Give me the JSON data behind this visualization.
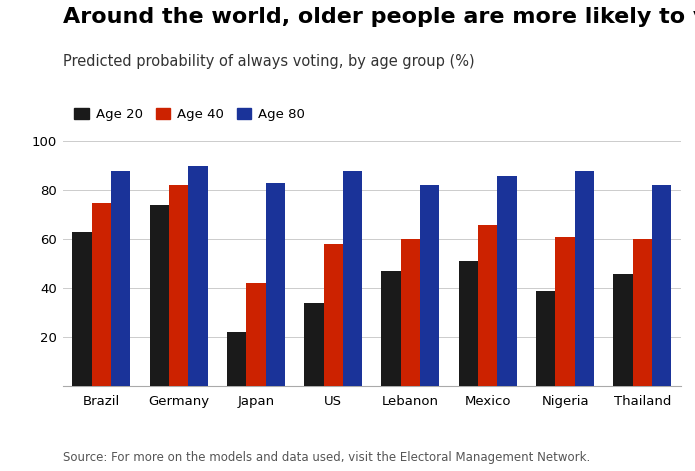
{
  "title": "Around the world, older people are more likely to vote",
  "subtitle": "Predicted probability of always voting, by age group (%)",
  "source": "Source: For more on the models and data used, visit the Electoral Management Network.",
  "categories": [
    "Brazil",
    "Germany",
    "Japan",
    "US",
    "Lebanon",
    "Mexico",
    "Nigeria",
    "Thailand"
  ],
  "age20": [
    63,
    74,
    22,
    34,
    47,
    51,
    39,
    46
  ],
  "age40": [
    75,
    82,
    42,
    58,
    60,
    66,
    61,
    60
  ],
  "age80": [
    88,
    90,
    83,
    88,
    82,
    86,
    88,
    82
  ],
  "color_age20": "#1a1a1a",
  "color_age40": "#cc2200",
  "color_age80": "#1a3399",
  "legend_labels": [
    "Age 20",
    "Age 40",
    "Age 80"
  ],
  "ylim": [
    0,
    100
  ],
  "yticks": [
    20,
    40,
    60,
    80,
    100
  ],
  "bar_width": 0.25,
  "background_color": "#ffffff",
  "title_fontsize": 16,
  "subtitle_fontsize": 10.5,
  "tick_fontsize": 9.5,
  "source_fontsize": 8.5
}
